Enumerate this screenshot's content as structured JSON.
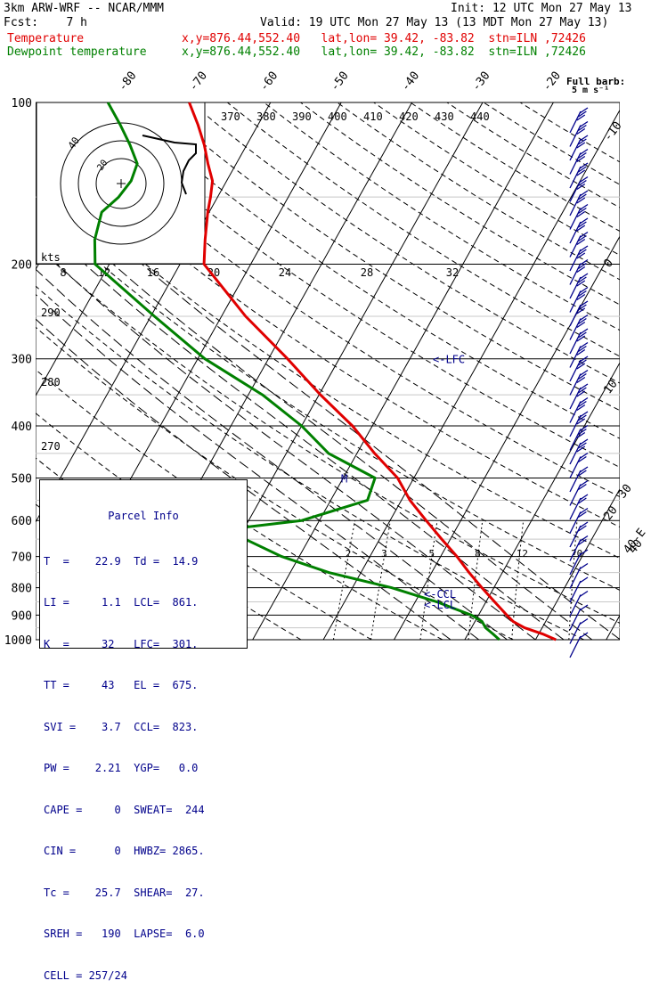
{
  "header": {
    "model": "3km ARW-WRF -- NCAR/MMM",
    "init": "Init: 12 UTC Mon 27 May 13",
    "fcst": "Fcst:    7 h",
    "valid": "Valid: 19 UTC Mon 27 May 13 (13 MDT Mon 27 May 13)",
    "temp_label": "Temperature",
    "temp_info": "x,y=876.44,552.40   lat,lon= 39.42, -83.82  stn=ILN ,72426",
    "dew_label": "Dewpoint temperature",
    "dew_info": "x,y=876.44,552.40   lat,lon= 39.42, -83.82  stn=ILN ,72426"
  },
  "colors": {
    "temperature": "#e00000",
    "dewpoint": "#008000",
    "info": "#00008b",
    "barbs": "#00008b"
  },
  "chart_data": {
    "type": "skew-t",
    "pressure_levels": [
      100,
      200,
      300,
      400,
      500,
      600,
      700,
      800,
      900,
      1000
    ],
    "isotherm_labels": [
      "-80",
      "-70",
      "-60",
      "-50",
      "-40",
      "-30",
      "-20",
      "-10",
      "0",
      "10",
      "20",
      "30",
      "40"
    ],
    "theta_labels": [
      "370",
      "380",
      "390",
      "400",
      "410",
      "420",
      "430",
      "440"
    ],
    "dry_adiabat_labels": [
      "290",
      "280",
      "270"
    ],
    "mixing_ratio_labels": [
      "2",
      "3",
      "5",
      "8",
      "12",
      "20"
    ],
    "hodograph": {
      "axis_unit": "kts",
      "speed_labels": [
        "8",
        "12",
        "16",
        "20",
        "24",
        "28",
        "32"
      ],
      "ring_labels": [
        "40",
        "20"
      ]
    },
    "barb_legend": {
      "title": "Full barb:",
      "value": "5 m s⁻¹"
    },
    "right_corner_label": "40-E",
    "level_markers": [
      {
        "label": "LFC",
        "pressure": 301
      },
      {
        "label": "CCL",
        "pressure": 823
      },
      {
        "label": "LCL",
        "pressure": 861
      },
      {
        "label": "M",
        "pressure": 500
      }
    ],
    "temperature": {
      "name": "Temperature",
      "points": [
        [
          1000,
          22.9
        ],
        [
          975,
          20.5
        ],
        [
          950,
          17.5
        ],
        [
          925,
          15.4
        ],
        [
          900,
          14.0
        ],
        [
          850,
          11.2
        ],
        [
          800,
          8.3
        ],
        [
          750,
          5.3
        ],
        [
          700,
          2.3
        ],
        [
          650,
          -1.2
        ],
        [
          600,
          -4.9
        ],
        [
          550,
          -8.8
        ],
        [
          500,
          -12.3
        ],
        [
          450,
          -17.5
        ],
        [
          400,
          -22.8
        ],
        [
          350,
          -29.8
        ],
        [
          300,
          -37.3
        ],
        [
          250,
          -46.6
        ],
        [
          200,
          -56.6
        ],
        [
          180,
          -58.4
        ],
        [
          160,
          -60.2
        ],
        [
          150,
          -61.0
        ],
        [
          140,
          -62.0
        ],
        [
          130,
          -64.0
        ],
        [
          120,
          -66.0
        ],
        [
          110,
          -68.5
        ],
        [
          100,
          -71.5
        ]
      ]
    },
    "dewpoint": {
      "name": "Dewpoint temperature",
      "points": [
        [
          1000,
          14.9
        ],
        [
          975,
          13.5
        ],
        [
          950,
          12.0
        ],
        [
          925,
          11.0
        ],
        [
          900,
          9.0
        ],
        [
          850,
          3.0
        ],
        [
          800,
          -4.5
        ],
        [
          750,
          -14.5
        ],
        [
          700,
          -22.5
        ],
        [
          650,
          -29.0
        ],
        [
          620,
          -31.0
        ],
        [
          600,
          -22.5
        ],
        [
          550,
          -14.8
        ],
        [
          500,
          -15.5
        ],
        [
          450,
          -24.0
        ],
        [
          400,
          -30.0
        ],
        [
          350,
          -38.0
        ],
        [
          300,
          -49.0
        ],
        [
          250,
          -59.5
        ],
        [
          200,
          -72.0
        ],
        [
          180,
          -74.0
        ],
        [
          160,
          -75.2
        ],
        [
          150,
          -74.0
        ],
        [
          140,
          -73.5
        ],
        [
          130,
          -74.0
        ],
        [
          120,
          -76.5
        ],
        [
          110,
          -79.5
        ],
        [
          100,
          -83.0
        ]
      ]
    }
  },
  "parcel_info": {
    "title": "Parcel Info",
    "rows": [
      "T  =    22.9  Td =  14.9",
      "LI =     1.1  LCL=  861.",
      "K  =     32   LFC=  301.",
      "TT =     43   EL =  675.",
      "SVI =    3.7  CCL=  823.",
      "PW =    2.21  YGP=   0.0",
      "CAPE =     0  SWEAT=  244",
      "CIN =      0  HWBZ= 2865.",
      "Tc =    25.7  SHEAR=  27.",
      "SREH =   190  LAPSE=  6.0",
      "CELL = 257/24"
    ]
  }
}
